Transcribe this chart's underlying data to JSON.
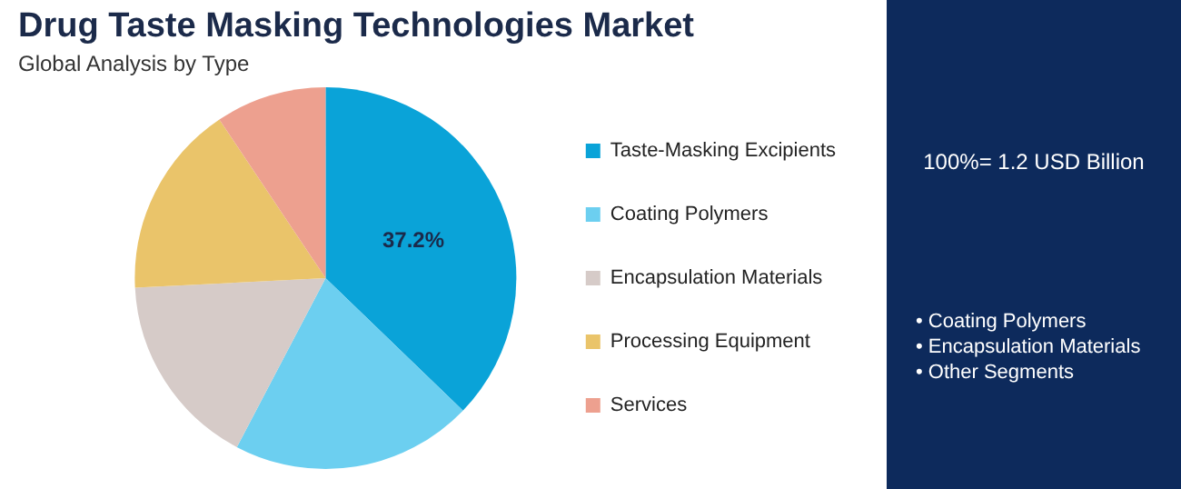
{
  "chart_data": {
    "type": "pie",
    "title": "Drug Taste Masking Technologies Market",
    "subtitle": "Global Analysis by Type",
    "categories": [
      "Taste-Masking Excipients",
      "Coating Polymers",
      "Encapsulation Materials",
      "Processing Equipment",
      "Services"
    ],
    "values": [
      37.2,
      20.5,
      16.5,
      16.4,
      9.4
    ],
    "colors": [
      "#0aa3d8",
      "#6ccff0",
      "#d6cbc8",
      "#eac46a",
      "#eda08f"
    ],
    "value_labels": [
      "37.2%",
      null,
      null,
      null,
      null
    ],
    "legend": "right",
    "annotations": [
      "100%= 1.2 USD Billion",
      "• Coating Polymers",
      "• Encapsulation Materials",
      "• Other Segments"
    ]
  }
}
